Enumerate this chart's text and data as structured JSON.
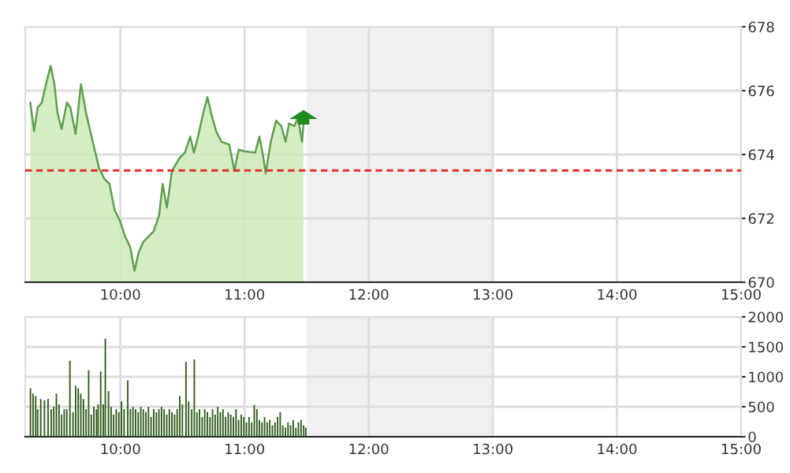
{
  "chart_data": [
    {
      "type": "area",
      "x": [
        9.274,
        9.304,
        9.333,
        9.367,
        9.4,
        9.438,
        9.468,
        9.493,
        9.526,
        9.569,
        9.597,
        9.639,
        9.682,
        9.723,
        9.777,
        9.828,
        9.87,
        9.912,
        9.953,
        9.996,
        10.038,
        10.079,
        10.113,
        10.147,
        10.185,
        10.226,
        10.268,
        10.311,
        10.34,
        10.374,
        10.415,
        10.478,
        10.519,
        10.562,
        10.591,
        10.625,
        10.667,
        10.701,
        10.73,
        10.771,
        10.814,
        10.877,
        10.918,
        10.952,
        11.003,
        11.086,
        11.119,
        11.148,
        11.17,
        11.211,
        11.254,
        11.296,
        11.33,
        11.358,
        11.4,
        11.43,
        11.463,
        11.475
      ],
      "series": [
        {
          "color": "#5f9e4e",
          "values": [
            675.63,
            674.73,
            675.47,
            675.63,
            676.2,
            676.78,
            676.2,
            675.3,
            674.8,
            675.63,
            675.47,
            674.64,
            676.2,
            675.3,
            674.4,
            673.57,
            673.24,
            673.08,
            672.26,
            671.93,
            671.43,
            671.1,
            670.36,
            670.94,
            671.27,
            671.43,
            671.6,
            672.09,
            673.08,
            672.34,
            673.49,
            673.9,
            674.06,
            674.56,
            674.06,
            674.56,
            675.3,
            675.8,
            675.3,
            674.73,
            674.4,
            674.31,
            673.49,
            674.15,
            674.1,
            674.06,
            674.56,
            673.98,
            673.41,
            674.4,
            675.06,
            674.89,
            674.4,
            674.97,
            674.89,
            675.14,
            674.4,
            674.97
          ]
        }
      ],
      "xlim": [
        9.233,
        15
      ],
      "ylim": [
        670,
        678
      ],
      "yticks": [
        670,
        672,
        674,
        676,
        678
      ],
      "xticks": [
        {
          "value": 10,
          "label": "10:00"
        },
        {
          "value": 11,
          "label": "11:00"
        },
        {
          "value": 12,
          "label": "12:00"
        },
        {
          "value": 13,
          "label": "13:00"
        },
        {
          "value": 14,
          "label": "14:00"
        },
        {
          "value": 15,
          "label": "15:00"
        }
      ],
      "ref_lines": [
        {
          "axis": "y",
          "value": 673.5,
          "color": "#e03030",
          "line_style": "dashed"
        }
      ],
      "bands": [
        {
          "axis": "x",
          "from": 11.5,
          "to": 13,
          "color": "#f0f0f0"
        }
      ],
      "grid": true
    },
    {
      "type": "bar",
      "x": [
        9.275,
        9.296,
        9.317,
        9.333,
        9.358,
        9.388,
        9.417,
        9.442,
        9.463,
        9.484,
        9.505,
        9.526,
        9.547,
        9.568,
        9.593,
        9.618,
        9.639,
        9.66,
        9.681,
        9.702,
        9.723,
        9.744,
        9.765,
        9.786,
        9.807,
        9.82,
        9.841,
        9.862,
        9.878,
        9.904,
        9.925,
        9.945,
        9.966,
        9.987,
        10.008,
        10.029,
        10.059,
        10.08,
        10.101,
        10.122,
        10.143,
        10.164,
        10.184,
        10.205,
        10.226,
        10.247,
        10.268,
        10.289,
        10.31,
        10.331,
        10.352,
        10.373,
        10.394,
        10.415,
        10.436,
        10.457,
        10.478,
        10.499,
        10.528,
        10.549,
        10.574,
        10.595,
        10.616,
        10.637,
        10.658,
        10.679,
        10.7,
        10.721,
        10.742,
        10.763,
        10.784,
        10.805,
        10.826,
        10.847,
        10.868,
        10.889,
        10.91,
        10.931,
        10.952,
        10.973,
        10.994,
        11.015,
        11.036,
        11.057,
        11.078,
        11.099,
        11.119,
        11.14,
        11.161,
        11.182,
        11.203,
        11.224,
        11.245,
        11.266,
        11.287,
        11.308,
        11.329,
        11.35,
        11.371,
        11.392,
        11.413,
        11.434,
        11.455,
        11.476,
        11.493
      ],
      "series": [
        {
          "color": "#2f5e1e",
          "values": [
            810,
            720,
            680,
            460,
            630,
            610,
            630,
            460,
            500,
            720,
            540,
            370,
            460,
            460,
            1270,
            410,
            850,
            810,
            720,
            630,
            460,
            1110,
            370,
            500,
            460,
            540,
            1090,
            540,
            1640,
            760,
            500,
            370,
            460,
            410,
            590,
            460,
            940,
            460,
            500,
            460,
            410,
            500,
            460,
            410,
            500,
            330,
            460,
            410,
            460,
            500,
            460,
            370,
            460,
            410,
            370,
            460,
            680,
            540,
            1250,
            590,
            460,
            1290,
            410,
            460,
            330,
            460,
            410,
            330,
            460,
            370,
            500,
            410,
            460,
            330,
            410,
            370,
            330,
            460,
            280,
            370,
            330,
            240,
            330,
            240,
            530,
            460,
            280,
            240,
            330,
            240,
            280,
            190,
            240,
            330,
            410,
            190,
            150,
            240,
            190,
            280,
            150,
            240,
            280,
            190,
            150
          ]
        }
      ],
      "xlim": [
        9.233,
        15
      ],
      "ylim": [
        0,
        2000
      ],
      "yticks": [
        0,
        500,
        1000,
        1500,
        2000
      ],
      "xticks": [
        {
          "value": 10,
          "label": "10:00"
        },
        {
          "value": 11,
          "label": "11:00"
        },
        {
          "value": 12,
          "label": "12:00"
        },
        {
          "value": 13,
          "label": "13:00"
        },
        {
          "value": 14,
          "label": "14:00"
        },
        {
          "value": 15,
          "label": "15:00"
        }
      ],
      "bands": [
        {
          "axis": "x",
          "from": 11.5,
          "to": 13,
          "color": "#f0f0f0"
        }
      ],
      "grid": true
    }
  ]
}
